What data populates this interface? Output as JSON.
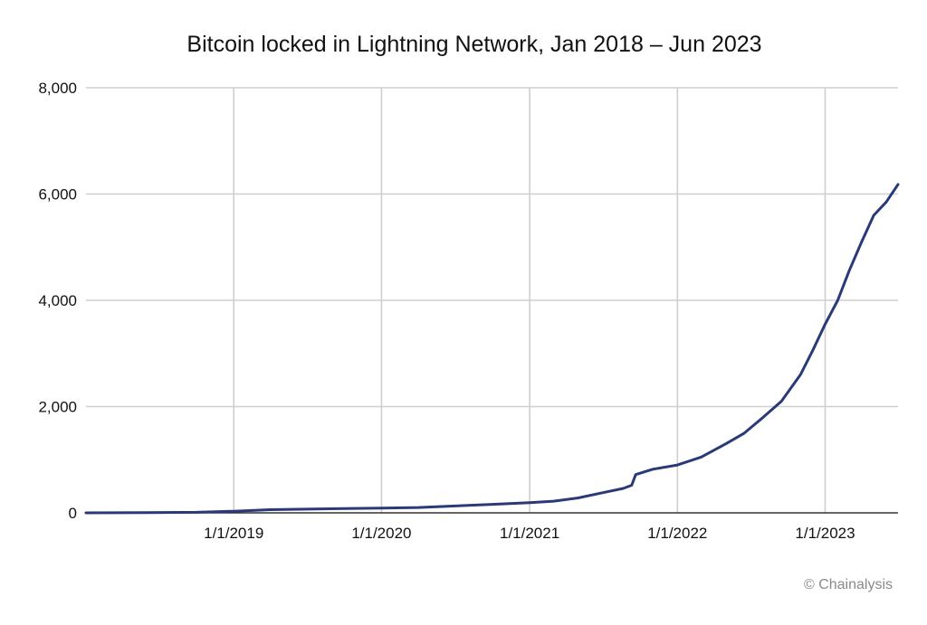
{
  "chart_data": {
    "type": "line",
    "title": "Bitcoin locked in Lightning Network, Jan 2018 – Jun 2023",
    "xlabel": "",
    "ylabel": "",
    "x_range": [
      "2018-01-01",
      "2023-06-30"
    ],
    "ylim": [
      0,
      8000
    ],
    "y_ticks": [
      0,
      2000,
      4000,
      6000,
      8000
    ],
    "y_tick_labels": [
      "0",
      "2,000",
      "4,000",
      "6,000",
      "8,000"
    ],
    "x_ticks": [
      "2019-01-01",
      "2020-01-01",
      "2021-01-01",
      "2022-01-01",
      "2023-01-01"
    ],
    "x_tick_labels": [
      "1/1/2019",
      "1/1/2020",
      "1/1/2021",
      "1/1/2022",
      "1/1/2023"
    ],
    "grid": true,
    "legend": "none",
    "series": [
      {
        "name": "Bitcoin locked",
        "color": "#2a3a78",
        "points": [
          [
            "2018-01-01",
            0
          ],
          [
            "2018-06-01",
            5
          ],
          [
            "2018-10-01",
            10
          ],
          [
            "2019-01-01",
            30
          ],
          [
            "2019-04-01",
            60
          ],
          [
            "2019-07-01",
            70
          ],
          [
            "2019-10-01",
            80
          ],
          [
            "2020-01-01",
            90
          ],
          [
            "2020-04-01",
            100
          ],
          [
            "2020-07-01",
            130
          ],
          [
            "2020-10-01",
            160
          ],
          [
            "2021-01-01",
            190
          ],
          [
            "2021-03-01",
            220
          ],
          [
            "2021-05-01",
            280
          ],
          [
            "2021-07-01",
            380
          ],
          [
            "2021-08-20",
            460
          ],
          [
            "2021-09-10",
            520
          ],
          [
            "2021-09-20",
            720
          ],
          [
            "2021-11-01",
            820
          ],
          [
            "2022-01-01",
            900
          ],
          [
            "2022-03-01",
            1050
          ],
          [
            "2022-05-01",
            1300
          ],
          [
            "2022-06-15",
            1500
          ],
          [
            "2022-08-01",
            1800
          ],
          [
            "2022-09-15",
            2100
          ],
          [
            "2022-11-01",
            2600
          ],
          [
            "2022-12-01",
            3050
          ],
          [
            "2023-01-01",
            3550
          ],
          [
            "2023-02-01",
            4000
          ],
          [
            "2023-03-01",
            4550
          ],
          [
            "2023-04-01",
            5100
          ],
          [
            "2023-05-01",
            5600
          ],
          [
            "2023-06-01",
            5850
          ],
          [
            "2023-06-30",
            6180
          ]
        ]
      }
    ],
    "credit": "© Chainalysis"
  }
}
